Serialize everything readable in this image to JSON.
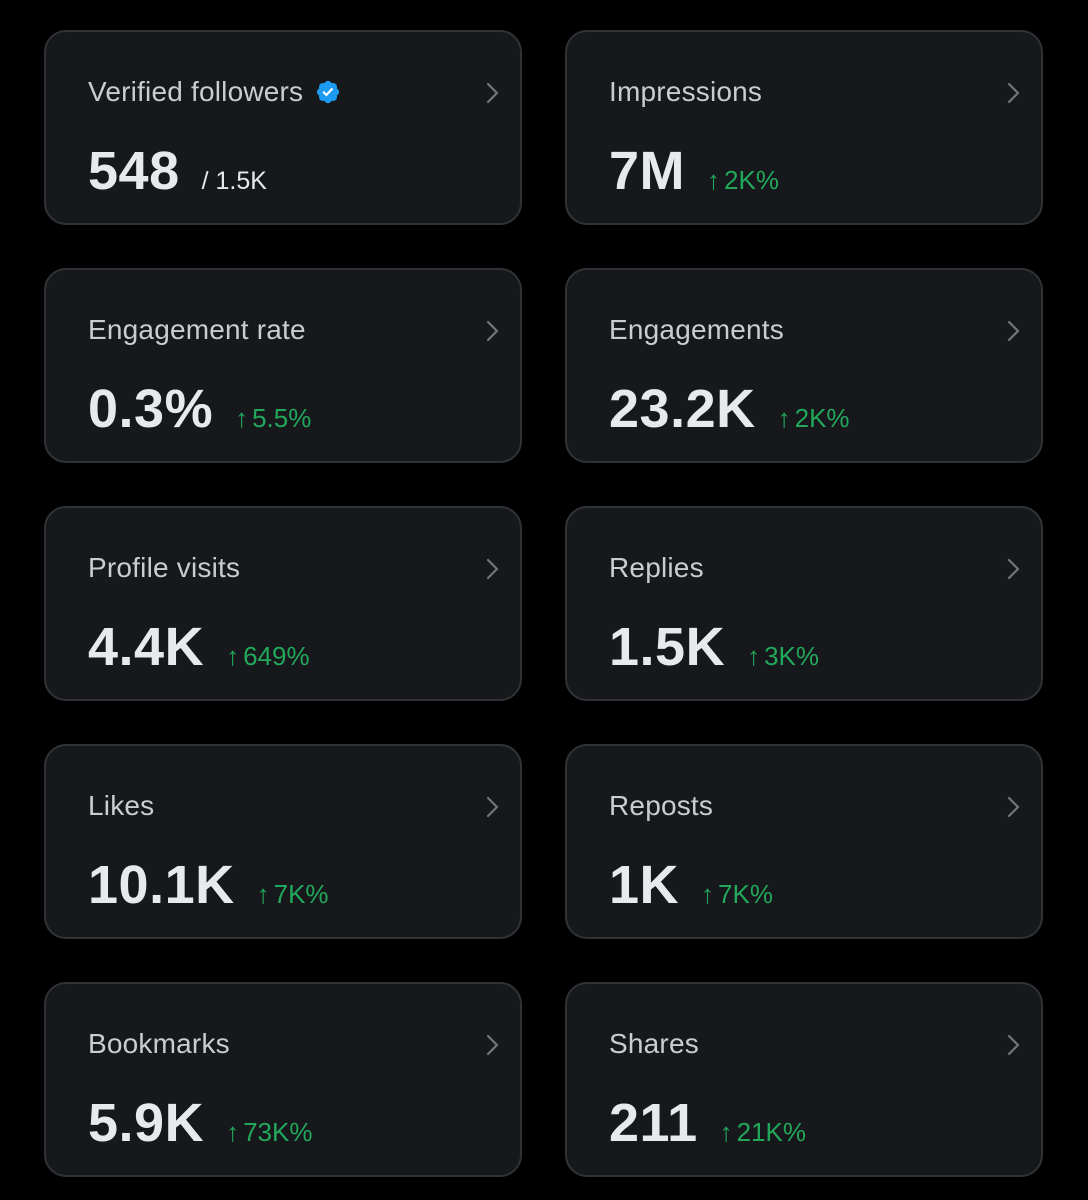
{
  "colors": {
    "background": "#000000",
    "card": "#16181c",
    "card_border": "#2f3336",
    "label": "#c9cdd1",
    "value": "#e7e9ea",
    "positive": "#22a85a",
    "verified": "#1d9bf0"
  },
  "icons": {
    "verified": "verified-badge-icon",
    "chevron": "chevron-right-icon",
    "trend": "arrow-up-icon"
  },
  "metrics": {
    "verified_followers": {
      "label": "Verified followers",
      "value": "548",
      "total": "/ 1.5K"
    },
    "impressions": {
      "label": "Impressions",
      "value": "7M",
      "change": "2K%"
    },
    "engagement_rate": {
      "label": "Engagement rate",
      "value": "0.3%",
      "change": "5.5%"
    },
    "engagements": {
      "label": "Engagements",
      "value": "23.2K",
      "change": "2K%"
    },
    "profile_visits": {
      "label": "Profile visits",
      "value": "4.4K",
      "change": "649%"
    },
    "replies": {
      "label": "Replies",
      "value": "1.5K",
      "change": "3K%"
    },
    "likes": {
      "label": "Likes",
      "value": "10.1K",
      "change": "7K%"
    },
    "reposts": {
      "label": "Reposts",
      "value": "1K",
      "change": "7K%"
    },
    "bookmarks": {
      "label": "Bookmarks",
      "value": "5.9K",
      "change": "73K%"
    },
    "shares": {
      "label": "Shares",
      "value": "211",
      "change": "21K%"
    }
  }
}
